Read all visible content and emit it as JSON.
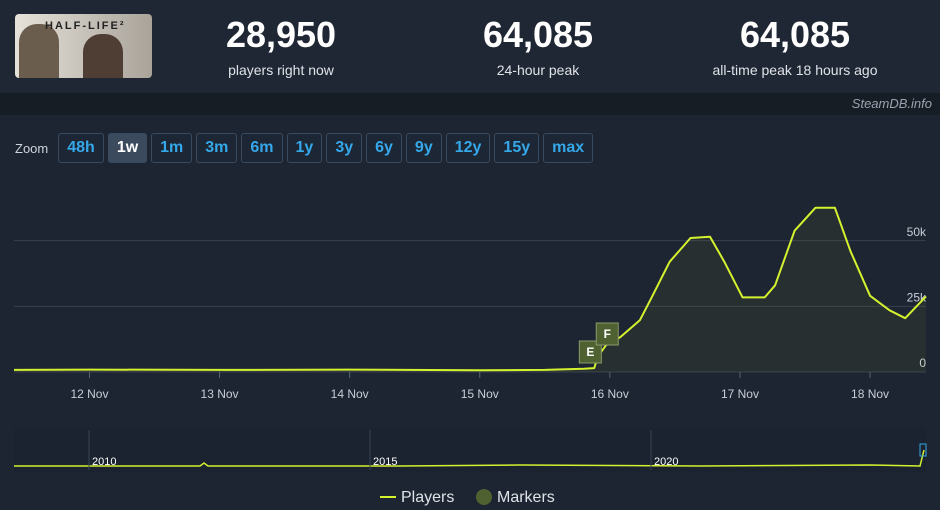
{
  "header": {
    "logo": "HALF-LIFE²",
    "stats": [
      {
        "value": "28,950",
        "label": "players right now"
      },
      {
        "value": "64,085",
        "label": "24-hour peak"
      },
      {
        "value": "64,085",
        "label": "all-time peak 18 hours ago"
      }
    ],
    "credit": "SteamDB.info"
  },
  "zoom": {
    "label": "Zoom",
    "options": [
      "48h",
      "1w",
      "1m",
      "3m",
      "6m",
      "1y",
      "3y",
      "6y",
      "9y",
      "12y",
      "15y",
      "max"
    ],
    "selected": "1w"
  },
  "chart_data": {
    "type": "line",
    "xlim": [
      11.42,
      18.43
    ],
    "xticks": [
      {
        "value": 12,
        "label": "12 Nov"
      },
      {
        "value": 13,
        "label": "13 Nov"
      },
      {
        "value": 14,
        "label": "14 Nov"
      },
      {
        "value": 15,
        "label": "15 Nov"
      },
      {
        "value": 16,
        "label": "16 Nov"
      },
      {
        "value": 17,
        "label": "17 Nov"
      },
      {
        "value": 18,
        "label": "18 Nov"
      }
    ],
    "ylim": [
      0,
      75000
    ],
    "yticks": [
      0,
      {
        "value": 25000,
        "label": "25k"
      },
      {
        "value": 50000,
        "label": "50k"
      }
    ],
    "grid": true,
    "x": [
      11.42,
      12,
      13,
      14,
      15,
      15.5,
      15.8,
      15.88,
      15.91,
      15.97,
      16.08,
      16.23,
      16.31,
      16.46,
      16.62,
      16.77,
      16.88,
      17.02,
      17.19,
      17.27,
      17.42,
      17.58,
      17.73,
      17.85,
      18.0,
      18.15,
      18.27,
      18.43
    ],
    "series": [
      {
        "name": "Players",
        "color": "#d4f22e",
        "values": [
          800,
          900,
          800,
          900,
          700,
          800,
          1200,
          1500,
          6000,
          10200,
          13300,
          19700,
          27300,
          42000,
          51000,
          51500,
          42000,
          28400,
          28400,
          33000,
          53800,
          62500,
          62500,
          46000,
          29000,
          23500,
          20500,
          28800
        ]
      }
    ],
    "markers": {
      "name": "Markers",
      "color": "#4f6131",
      "items": [
        {
          "label": "E",
          "x": 15.85
        },
        {
          "label": "F",
          "x": 15.98
        }
      ]
    },
    "navigator_labels": [
      "2010",
      "2015",
      "2020"
    ]
  }
}
